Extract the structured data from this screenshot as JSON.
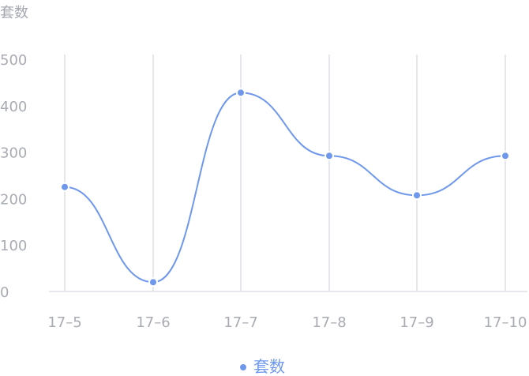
{
  "chart_data": {
    "type": "line",
    "y_unit_label": "套数",
    "categories": [
      "17–5",
      "17–6",
      "17–7",
      "17–8",
      "17–9",
      "17–10"
    ],
    "series": [
      {
        "name": "套数",
        "values": [
          225,
          20,
          428,
          292,
          207,
          292
        ]
      }
    ],
    "ylim": [
      0,
      500
    ],
    "yticks": [
      0,
      100,
      200,
      300,
      400,
      500
    ],
    "grid": "vertical",
    "smooth": true,
    "legend": "bottom-center",
    "colors": {
      "series": "#6f98ec",
      "grid": "#e6e7ec",
      "tick_text": "#a8abb2"
    }
  }
}
